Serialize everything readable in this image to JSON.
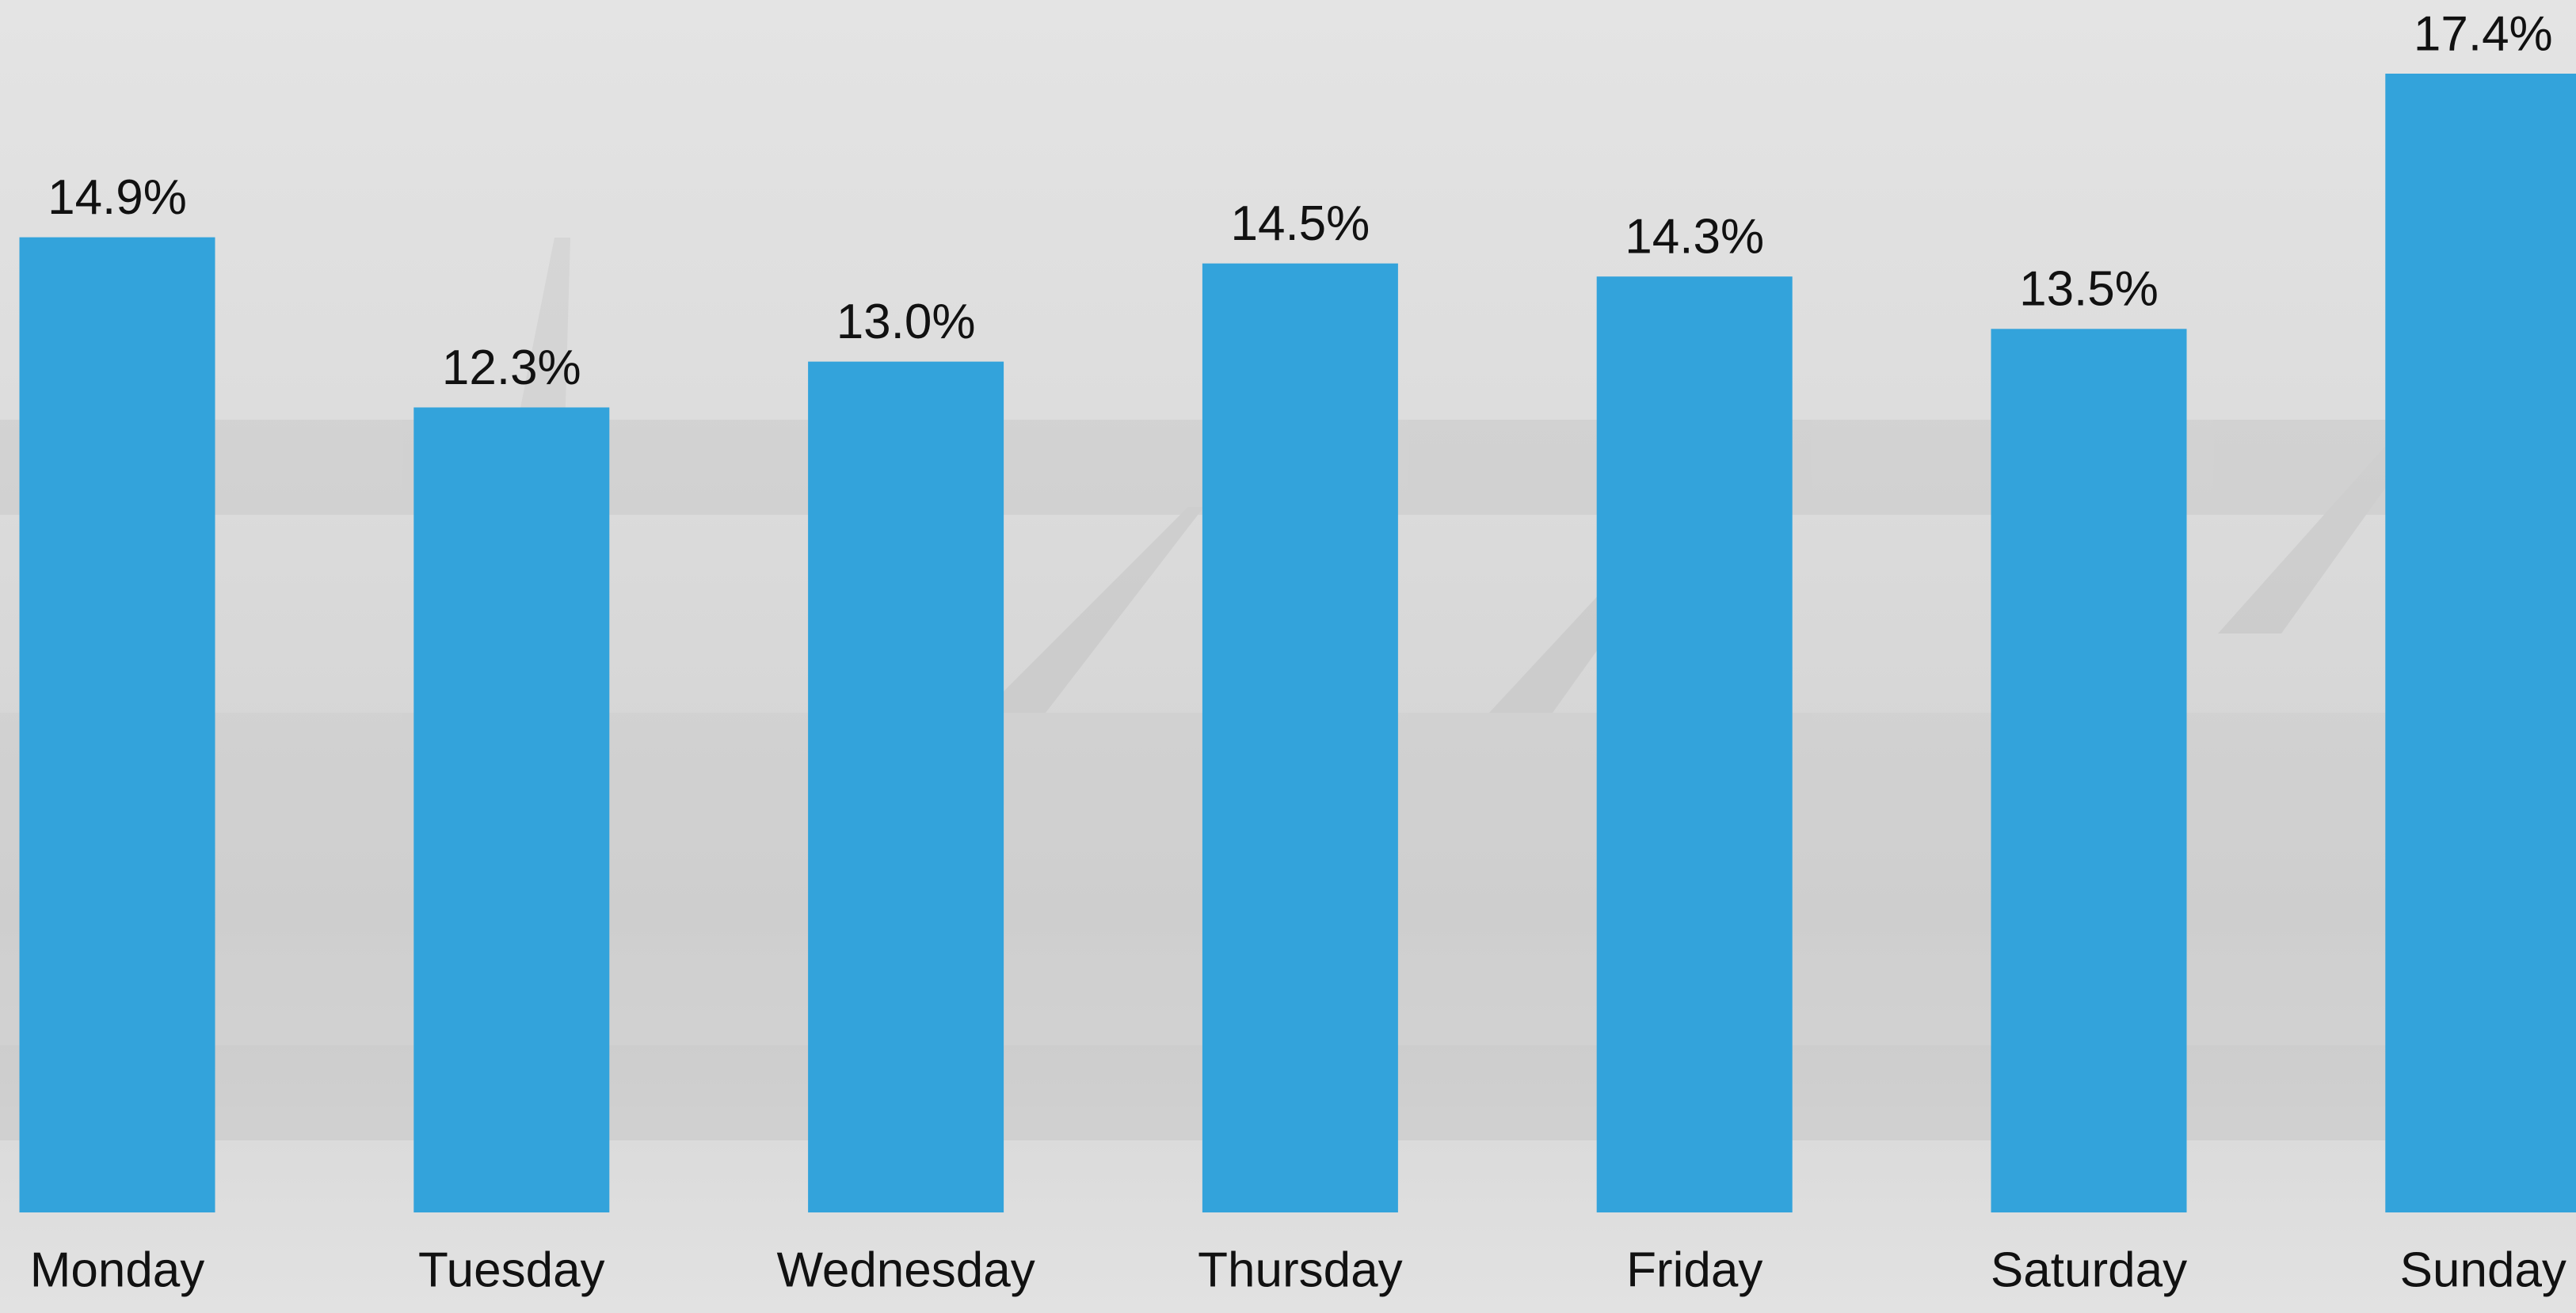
{
  "chart_data": {
    "type": "bar",
    "categories": [
      "Monday",
      "Tuesday",
      "Wednesday",
      "Thursday",
      "Friday",
      "Saturday",
      "Sunday"
    ],
    "values": [
      14.9,
      12.3,
      13.0,
      14.5,
      14.3,
      13.5,
      17.4
    ],
    "value_labels": [
      "14.9%",
      "12.3%",
      "13.0%",
      "14.5%",
      "14.3%",
      "13.5%",
      "17.4%"
    ],
    "color": "#33a3db"
  }
}
